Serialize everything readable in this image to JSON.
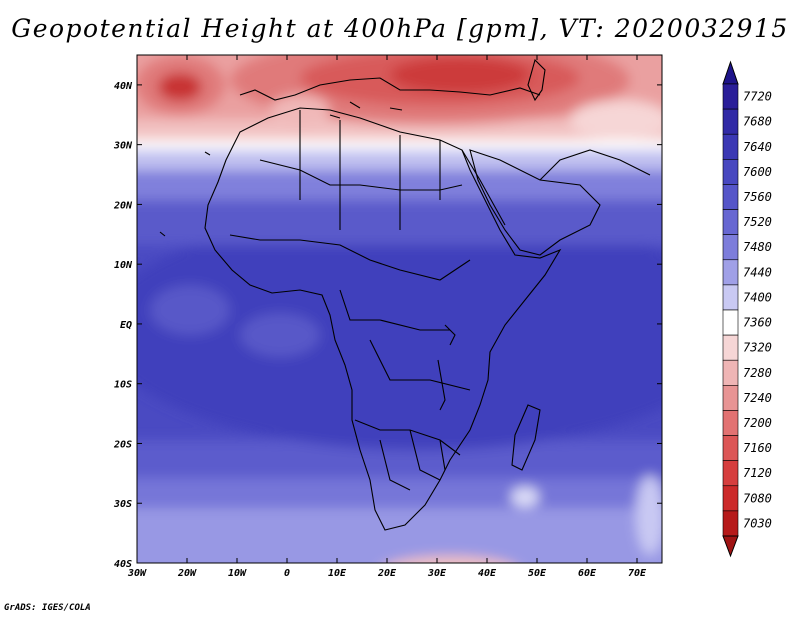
{
  "title": "Geopotential Height at 400hPa [gpm], VT: 2020032915",
  "credit": "GrADS: IGES/COLA",
  "map": {
    "projection": "latlon",
    "lon_range": [
      -30,
      75
    ],
    "lat_range": [
      -40,
      45
    ],
    "lon_ticks": [
      {
        "value": -30,
        "label": "30W"
      },
      {
        "value": -20,
        "label": "20W"
      },
      {
        "value": -10,
        "label": "10W"
      },
      {
        "value": 0,
        "label": "0"
      },
      {
        "value": 10,
        "label": "10E"
      },
      {
        "value": 20,
        "label": "20E"
      },
      {
        "value": 30,
        "label": "30E"
      },
      {
        "value": 40,
        "label": "40E"
      },
      {
        "value": 50,
        "label": "50E"
      },
      {
        "value": 60,
        "label": "60E"
      },
      {
        "value": 70,
        "label": "70E"
      }
    ],
    "lat_ticks": [
      {
        "value": 40,
        "label": "40N"
      },
      {
        "value": 30,
        "label": "30N"
      },
      {
        "value": 20,
        "label": "20N"
      },
      {
        "value": 10,
        "label": "10N"
      },
      {
        "value": 0,
        "label": "EQ"
      },
      {
        "value": -10,
        "label": "10S"
      },
      {
        "value": -20,
        "label": "20S"
      },
      {
        "value": -30,
        "label": "30S"
      },
      {
        "value": -40,
        "label": "40S"
      }
    ],
    "field": "geopotential height",
    "level": "400hPa",
    "units": "gpm"
  },
  "colorbar": {
    "levels": [
      {
        "value": "7720",
        "color": "#2a1e99"
      },
      {
        "value": "7680",
        "color": "#312aa6"
      },
      {
        "value": "7640",
        "color": "#3b38b4"
      },
      {
        "value": "7600",
        "color": "#4848c0"
      },
      {
        "value": "7560",
        "color": "#5656c9"
      },
      {
        "value": "7520",
        "color": "#6767d2"
      },
      {
        "value": "7480",
        "color": "#7d7ddb"
      },
      {
        "value": "7440",
        "color": "#a0a0e7"
      },
      {
        "value": "7400",
        "color": "#c9c9f3"
      },
      {
        "value": "7360",
        "color": "#ffffff"
      },
      {
        "value": "7320",
        "color": "#f6d6d6"
      },
      {
        "value": "7280",
        "color": "#efb5b5"
      },
      {
        "value": "7240",
        "color": "#e89494"
      },
      {
        "value": "7200",
        "color": "#e27272"
      },
      {
        "value": "7160",
        "color": "#dc5656"
      },
      {
        "value": "7120",
        "color": "#d63e3e"
      },
      {
        "value": "7080",
        "color": "#cc2a2a"
      },
      {
        "value": "7030",
        "color": "#b61a1a"
      }
    ],
    "top_arrow_color": "#1e148a",
    "bottom_arrow_color": "#a01414"
  }
}
